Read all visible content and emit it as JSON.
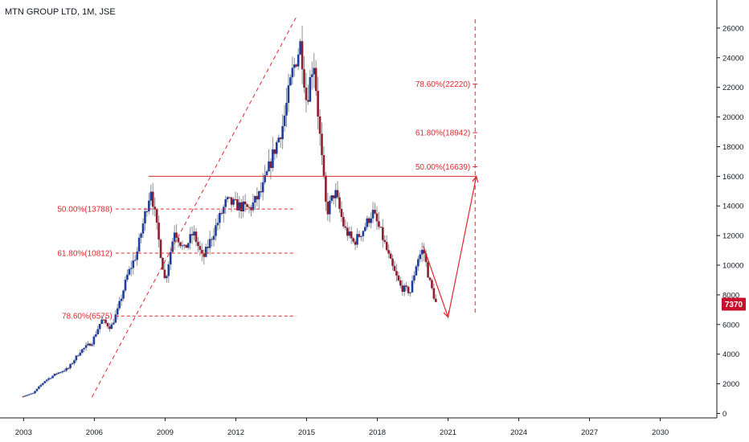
{
  "header": {
    "symbol_title": "MTN GROUP LTD, 1M, JSE"
  },
  "colors": {
    "up_candle": "#1c3f9e",
    "down_candle": "#8e1d2c",
    "wick": "#8a8f99",
    "annotation": "#e0262b",
    "price_tag": "#c8102e",
    "axis": "#131722",
    "background": "#ffffff"
  },
  "chart_data": {
    "type": "candlestick",
    "title": "MTN GROUP LTD, 1M, JSE",
    "x_ticks": [
      "2003",
      "2006",
      "2009",
      "2012",
      "2015",
      "2018",
      "2021",
      "2024",
      "2027",
      "2030"
    ],
    "y_ticks": [
      0,
      2000,
      4000,
      6000,
      8000,
      10000,
      12000,
      14000,
      16000,
      18000,
      20000,
      22000,
      24000,
      26000
    ],
    "xlim": [
      2002.0,
      2032.4
    ],
    "ylim": [
      -300,
      26700
    ],
    "last_price": "7370",
    "last_price_value": 7370,
    "grid": false,
    "price_path": [
      [
        2002.9,
        1150
      ],
      [
        2003.4,
        1350
      ],
      [
        2003.9,
        2200
      ],
      [
        2004.4,
        2700
      ],
      [
        2004.9,
        3050
      ],
      [
        2005.4,
        4200
      ],
      [
        2005.9,
        4800
      ],
      [
        2006.3,
        6300
      ],
      [
        2006.7,
        5800
      ],
      [
        2007.0,
        7000
      ],
      [
        2007.4,
        9300
      ],
      [
        2007.8,
        10800
      ],
      [
        2008.2,
        13800
      ],
      [
        2008.4,
        15200
      ],
      [
        2008.7,
        12000
      ],
      [
        2009.0,
        8900
      ],
      [
        2009.4,
        12400
      ],
      [
        2009.8,
        11000
      ],
      [
        2010.2,
        12200
      ],
      [
        2010.6,
        10400
      ],
      [
        2011.1,
        12400
      ],
      [
        2011.6,
        14300
      ],
      [
        2012.1,
        14000
      ],
      [
        2012.6,
        13800
      ],
      [
        2013.1,
        15000
      ],
      [
        2013.6,
        17600
      ],
      [
        2014.0,
        19500
      ],
      [
        2014.4,
        23000
      ],
      [
        2014.75,
        25000
      ],
      [
        2015.0,
        21000
      ],
      [
        2015.3,
        24000
      ],
      [
        2015.6,
        18000
      ],
      [
        2015.85,
        13500
      ],
      [
        2016.2,
        15000
      ],
      [
        2016.6,
        12500
      ],
      [
        2017.0,
        11500
      ],
      [
        2017.4,
        12400
      ],
      [
        2017.8,
        13600
      ],
      [
        2018.2,
        12000
      ],
      [
        2018.6,
        10000
      ],
      [
        2019.0,
        8500
      ],
      [
        2019.4,
        8200
      ],
      [
        2019.7,
        10400
      ],
      [
        2019.95,
        11100
      ],
      [
        2020.2,
        9000
      ],
      [
        2020.5,
        7370
      ]
    ],
    "annotations": {
      "retracement_left": {
        "levels": [
          {
            "label": "50.00%(13788)",
            "value": 13788
          },
          {
            "label": "61.80%(10812)",
            "value": 10812
          },
          {
            "label": "78.60%(6575)",
            "value": 6575
          }
        ],
        "x_start": 2006.9,
        "x_end": 2014.55
      },
      "extension_right": {
        "levels": [
          {
            "label": "78.60%(22220)",
            "value": 22220
          },
          {
            "label": "61.80%(18942)",
            "value": 18942
          },
          {
            "label": "50.00%(16639)",
            "value": 16639
          }
        ],
        "x": 2022.15
      },
      "horizontal_level": {
        "value": 16000,
        "x_start": 2008.3,
        "x_end": 2022.2
      },
      "trend_line": {
        "x_start": 2005.9,
        "y_start": 1100,
        "x_end": 2014.55,
        "y_end": 26700
      },
      "projection_path": [
        [
          2019.95,
          11300
        ],
        [
          2021.0,
          6500
        ],
        [
          2022.2,
          16000
        ]
      ],
      "projection_vline": {
        "x": 2022.15,
        "y_start": 6800,
        "y_end": 26700
      }
    }
  }
}
